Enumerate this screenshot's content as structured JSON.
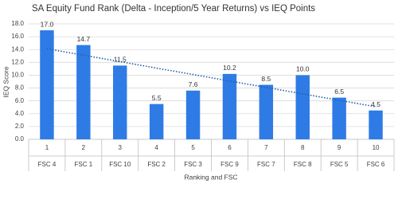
{
  "chart_data": {
    "type": "bar",
    "title": "SA Equity Fund Rank (Delta - Inception/5 Year Returns)  vs IEQ Points",
    "x_label": "Ranking and FSC",
    "y_label": "IEQ Score",
    "categories": [
      "1",
      "2",
      "3",
      "4",
      "5",
      "6",
      "7",
      "8",
      "9",
      "10"
    ],
    "sub_categories": [
      "FSC 4",
      "FSC 1",
      "FSC 10",
      "FSC 2",
      "FSC 3",
      "FSC 9",
      "FSC 7",
      "FSC 8",
      "FSC 5",
      "FSC 6"
    ],
    "values": [
      17,
      14.7,
      11.5,
      5.5,
      7.6,
      10.2,
      8.5,
      10,
      6.5,
      4.5
    ],
    "value_labels": [
      "17.0",
      "14.7",
      "11.5",
      "5.5",
      "7.6",
      "10.2",
      "8.5",
      "10.0",
      "6.5",
      "4.5"
    ],
    "color": "#2f7be6",
    "trendline": "linear",
    "trendline_color": "#1f5fa8",
    "ylim": [
      0,
      18
    ],
    "yticks": [
      {
        "value": 0,
        "label": "0.0"
      },
      {
        "value": 2,
        "label": "2.0"
      },
      {
        "value": 4,
        "label": "4.0"
      },
      {
        "value": 6,
        "label": "6.0"
      },
      {
        "value": 8,
        "label": "8.0"
      },
      {
        "value": 10,
        "label": "10.0"
      },
      {
        "value": 12,
        "label": "12.0"
      },
      {
        "value": 14,
        "label": "14.0"
      },
      {
        "value": 16,
        "label": "16.0"
      },
      {
        "value": 18,
        "label": "18.0"
      }
    ],
    "grid": true
  }
}
